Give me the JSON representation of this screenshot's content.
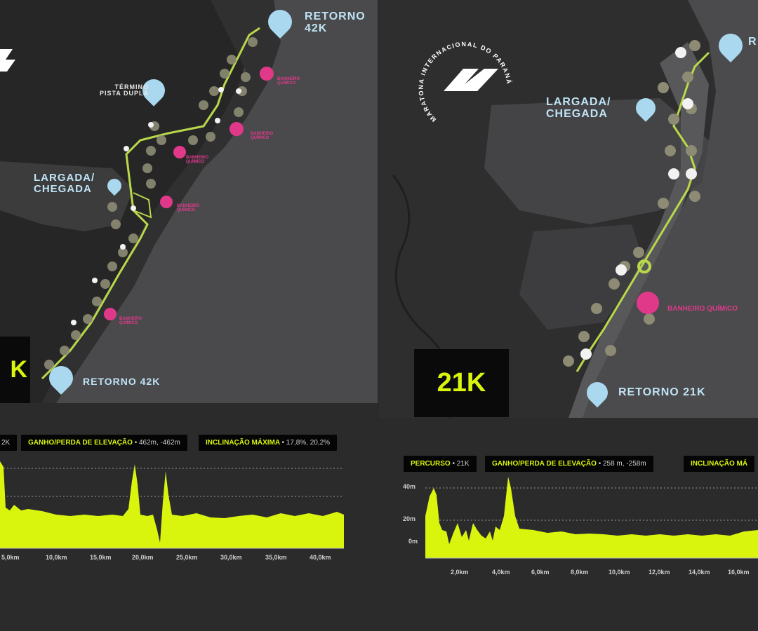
{
  "left_map": {
    "labels": {
      "retorno_top": "RETORNO\n42K",
      "termino": "TÉRMINO\nPISTA DUPLA",
      "largada": "LARGADA/\nCHEGADA",
      "retorno_bottom": "RETORNO 42K"
    },
    "banheiros": [
      "BANHEIRO\nQUÍMICO",
      "BANHEIRO\nQUÍMICO",
      "BANHEIRO\nQUÍMICO",
      "BANHEIRO\nQUÍMICO",
      "BANHEIRO\nQUÍMICO"
    ],
    "distance_label": "K"
  },
  "right_map": {
    "logo_text": "MARATONA INTERNACIONAL DO PARANÁ",
    "labels": {
      "largada": "LARGADA/\nCHEGADA",
      "retorno_bottom": "RETORNO 21K",
      "retorno_top": "R"
    },
    "banheiro": "BANHEIRO QUÍMICO",
    "distance_label": "21K"
  },
  "profile_42k": {
    "pills": {
      "percurso_value": "2K",
      "ganho_label": "GANHO/PERDA DE ELEVAÇÃO",
      "ganho_value": "• 462m, -462m",
      "inclinacao_label": "INCLINAÇÃO MÁXIMA",
      "inclinacao_value": "• 17,8%, 20,2%"
    },
    "x_ticks": [
      "5,0km",
      "10,0km",
      "15,0km",
      "20,0km",
      "25,0km",
      "30,0km",
      "35,0km",
      "40,0km"
    ]
  },
  "profile_21k": {
    "pills": {
      "percurso_label": "PERCURSO",
      "percurso_value": "• 21K",
      "ganho_label": "GANHO/PERDA DE ELEVAÇÃO",
      "ganho_value": "• 258 m, -258m",
      "inclinacao_label": "INCLINAÇÃO MÁ"
    },
    "y_ticks": [
      "40m",
      "20m",
      "0m"
    ],
    "x_ticks": [
      "2,0km",
      "4,0km",
      "6,0km",
      "8,0km",
      "10,0km",
      "12,0km",
      "14,0km",
      "16,0km"
    ]
  },
  "colors": {
    "accent": "#d9f50e",
    "pink": "#e0398a",
    "light_blue": "#a9d8ef",
    "background": "#2b2b2c",
    "route": "#b9d84a"
  }
}
